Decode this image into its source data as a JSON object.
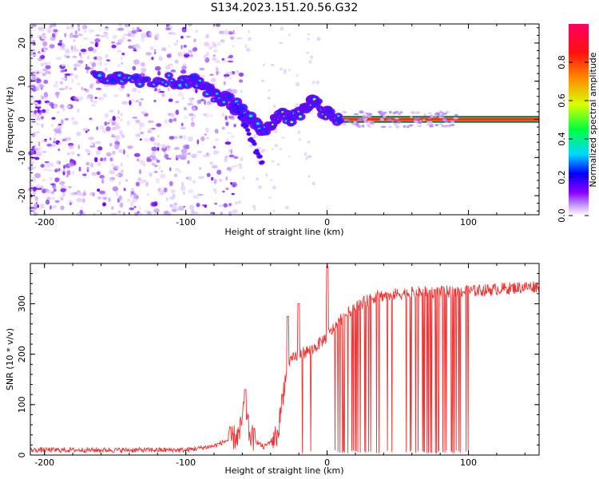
{
  "title": "S134.2023.151.20.56.G32",
  "chart_data": [
    {
      "type": "heatmap",
      "name": "spectrogram",
      "xlabel": "Height of straight line (km)",
      "ylabel": "Frequency (Hz)",
      "xlim": [
        -210,
        150
      ],
      "ylim": [
        -25,
        25
      ],
      "xticks": [
        -200,
        -100,
        0,
        100
      ],
      "yticks": [
        -20,
        -10,
        0,
        10,
        20
      ],
      "xtick_labels": [
        "-200",
        "-100",
        "0",
        "100"
      ],
      "ytick_labels": [
        "-20",
        "-10",
        "0",
        "10",
        "20"
      ],
      "signal_track": [
        {
          "x": -165,
          "f": 11.5
        },
        {
          "x": -145,
          "f": 11
        },
        {
          "x": -120,
          "f": 10.5
        },
        {
          "x": -100,
          "f": 10
        },
        {
          "x": -90,
          "f": 10
        },
        {
          "x": -80,
          "f": 6
        },
        {
          "x": -70,
          "f": 5
        },
        {
          "x": -60,
          "f": 2
        },
        {
          "x": -50,
          "f": -2
        },
        {
          "x": -40,
          "f": -2
        },
        {
          "x": -33,
          "f": 2
        },
        {
          "x": -25,
          "f": 0
        },
        {
          "x": -15,
          "f": 3
        },
        {
          "x": -10,
          "f": 4.5
        },
        {
          "x": 0,
          "f": 1.5
        },
        {
          "x": 10,
          "f": 0
        },
        {
          "x": 150,
          "f": 0
        }
      ],
      "colorbar": {
        "label": "Normalized spectral amplitude",
        "range": [
          0,
          1
        ],
        "ticks": [
          0.0,
          0.2,
          0.4,
          0.6,
          0.8
        ],
        "tick_labels": [
          "0.0",
          "0.2",
          "0.4",
          "0.6",
          "0.8"
        ]
      }
    },
    {
      "type": "line",
      "name": "snr",
      "xlabel": "Height of straight line (km)",
      "ylabel": "SNR (10 * v/v)",
      "xlim": [
        -210,
        150
      ],
      "ylim": [
        0,
        380
      ],
      "xticks": [
        -200,
        -100,
        0,
        100
      ],
      "yticks": [
        0,
        100,
        200,
        300
      ],
      "xtick_labels": [
        "-200",
        "-100",
        "0",
        "100"
      ],
      "ytick_labels": [
        "0",
        "100",
        "200",
        "300"
      ],
      "color": "#ee3333",
      "envelope": [
        {
          "x": -210,
          "y": 10
        },
        {
          "x": -100,
          "y": 10
        },
        {
          "x": -80,
          "y": 18
        },
        {
          "x": -62,
          "y": 40
        },
        {
          "x": -58,
          "y": 110
        },
        {
          "x": -55,
          "y": 40
        },
        {
          "x": -45,
          "y": 15
        },
        {
          "x": -35,
          "y": 40
        },
        {
          "x": -30,
          "y": 150
        },
        {
          "x": -25,
          "y": 190
        },
        {
          "x": -20,
          "y": 200
        },
        {
          "x": -10,
          "y": 210
        },
        {
          "x": 0,
          "y": 235
        },
        {
          "x": 10,
          "y": 270
        },
        {
          "x": 20,
          "y": 295
        },
        {
          "x": 35,
          "y": 315
        },
        {
          "x": 60,
          "y": 322
        },
        {
          "x": 100,
          "y": 325
        },
        {
          "x": 150,
          "y": 335
        }
      ],
      "spikes": [
        {
          "x": -58,
          "y": 130
        },
        {
          "x": -28,
          "y": 275
        },
        {
          "x": -20,
          "y": 300
        },
        {
          "x": 0,
          "y": 375
        }
      ],
      "dropouts_range": [
        -35,
        102
      ]
    }
  ]
}
